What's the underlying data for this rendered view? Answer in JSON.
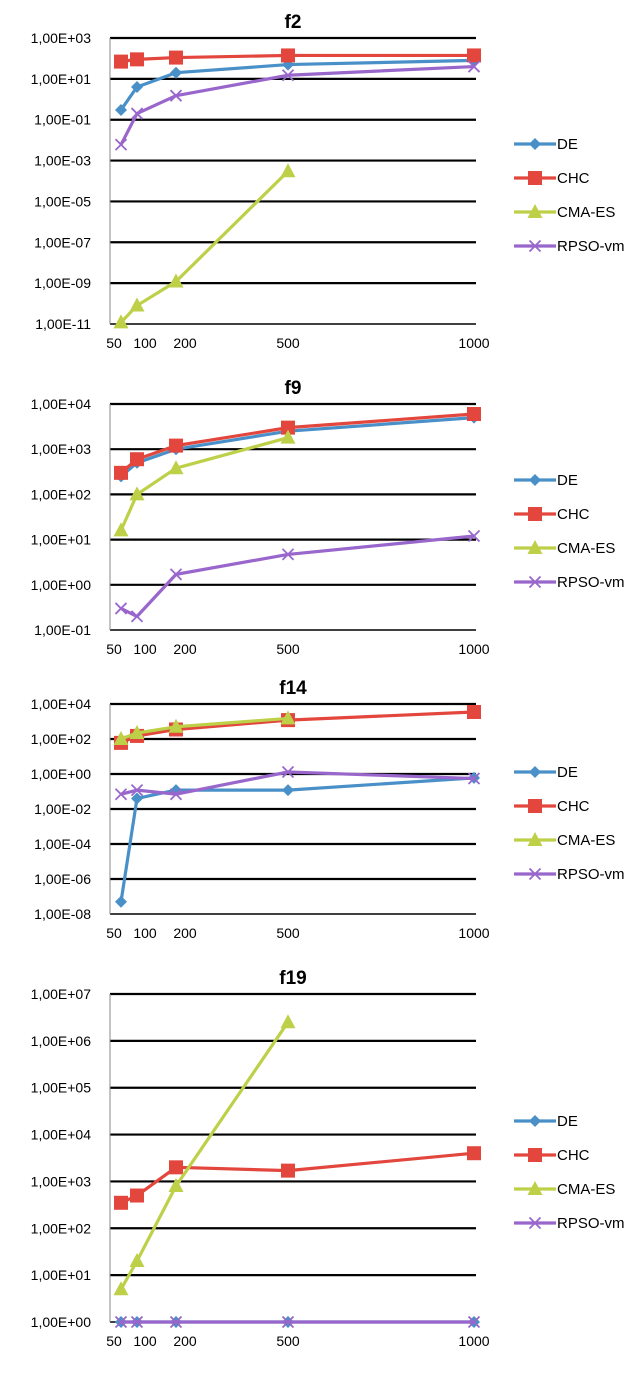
{
  "chart_data": [
    {
      "type": "line",
      "title": "f2",
      "y_scale": "log",
      "ylim": [
        1e-11,
        1000
      ],
      "y_ticks": [
        "1,00E+03",
        "1,00E+01",
        "1,00E-01",
        "1,00E-03",
        "1,00E-05",
        "1,00E-07",
        "1,00E-09",
        "1,00E-11"
      ],
      "x": [
        50,
        100,
        200,
        500,
        1000
      ],
      "x_ticks": [
        "50",
        "100",
        "200",
        "500",
        "1000"
      ],
      "grid": true,
      "legend": "right",
      "series": [
        {
          "name": "DE",
          "color": "#4a90c8",
          "marker": "diamond",
          "x": [
            50,
            100,
            200,
            500,
            1000
          ],
          "values": [
            0.3,
            4,
            20,
            50,
            80
          ]
        },
        {
          "name": "CHC",
          "color": "#e2463c",
          "marker": "square",
          "x": [
            50,
            100,
            200,
            500,
            1000
          ],
          "values": [
            70,
            90,
            110,
            140,
            140
          ]
        },
        {
          "name": "CMA-ES",
          "color": "#bdd048",
          "marker": "triangle",
          "x": [
            50,
            100,
            200,
            500
          ],
          "values": [
            1.2e-11,
            8e-11,
            1.2e-09,
            0.0003
          ]
        },
        {
          "name": "RPSO-vm",
          "color": "#9966cc",
          "marker": "x",
          "x": [
            50,
            100,
            200,
            500,
            1000
          ],
          "values": [
            0.006,
            0.2,
            1.5,
            15,
            40
          ]
        }
      ]
    },
    {
      "type": "line",
      "title": "f9",
      "y_scale": "log",
      "ylim": [
        0.1,
        10000
      ],
      "y_ticks": [
        "1,00E+04",
        "1,00E+03",
        "1,00E+02",
        "1,00E+01",
        "1,00E+00",
        "1,00E-01"
      ],
      "x": [
        50,
        100,
        200,
        500,
        1000
      ],
      "x_ticks": [
        "50",
        "100",
        "200",
        "500",
        "1000"
      ],
      "grid": true,
      "legend": "right",
      "series": [
        {
          "name": "DE",
          "color": "#4a90c8",
          "marker": "diamond",
          "x": [
            50,
            100,
            200,
            500,
            1000
          ],
          "values": [
            250,
            500,
            1000,
            2500,
            5000
          ]
        },
        {
          "name": "CHC",
          "color": "#e2463c",
          "marker": "square",
          "x": [
            50,
            100,
            200,
            500,
            1000
          ],
          "values": [
            300,
            600,
            1200,
            3000,
            6000
          ]
        },
        {
          "name": "CMA-ES",
          "color": "#bdd048",
          "marker": "triangle",
          "x": [
            50,
            100,
            200,
            500
          ],
          "values": [
            16,
            100,
            380,
            1800
          ]
        },
        {
          "name": "RPSO-vm",
          "color": "#9966cc",
          "marker": "x",
          "x": [
            50,
            100,
            200,
            500,
            1000
          ],
          "values": [
            0.3,
            0.2,
            1.7,
            4.7,
            12
          ]
        }
      ]
    },
    {
      "type": "line",
      "title": "f14",
      "y_scale": "log",
      "ylim": [
        1e-08,
        10000
      ],
      "y_ticks": [
        "1,00E+04",
        "1,00E+02",
        "1,00E+00",
        "1,00E-02",
        "1,00E-04",
        "1,00E-06",
        "1,00E-08"
      ],
      "x": [
        50,
        100,
        200,
        500,
        1000
      ],
      "x_ticks": [
        "50",
        "100",
        "200",
        "500",
        "1000"
      ],
      "grid": true,
      "legend": "right",
      "series": [
        {
          "name": "DE",
          "color": "#4a90c8",
          "marker": "diamond",
          "x": [
            50,
            100,
            200,
            500,
            1000
          ],
          "values": [
            5e-08,
            0.04,
            0.12,
            0.12,
            0.6
          ]
        },
        {
          "name": "CHC",
          "color": "#e2463c",
          "marker": "square",
          "x": [
            50,
            100,
            200,
            500,
            1000
          ],
          "values": [
            60,
            150,
            350,
            1200,
            3500
          ]
        },
        {
          "name": "CMA-ES",
          "color": "#bdd048",
          "marker": "triangle",
          "x": [
            50,
            100,
            200,
            500
          ],
          "values": [
            100,
            220,
            500,
            1500
          ]
        },
        {
          "name": "RPSO-vm",
          "color": "#9966cc",
          "marker": "x",
          "x": [
            50,
            100,
            200,
            500,
            1000
          ],
          "values": [
            0.07,
            0.12,
            0.07,
            1.3,
            0.55
          ]
        }
      ]
    },
    {
      "type": "line",
      "title": "f19",
      "y_scale": "log",
      "ylim": [
        1,
        10000000
      ],
      "y_ticks": [
        "1,00E+07",
        "1,00E+06",
        "1,00E+05",
        "1,00E+04",
        "1,00E+03",
        "1,00E+02",
        "1,00E+01",
        "1,00E+00"
      ],
      "x": [
        50,
        100,
        200,
        500,
        1000
      ],
      "x_ticks": [
        "50",
        "100",
        "200",
        "500",
        "1000"
      ],
      "grid": true,
      "legend": "right",
      "series": [
        {
          "name": "DE",
          "color": "#4a90c8",
          "marker": "diamond",
          "x": [
            50,
            100,
            200,
            500,
            1000
          ],
          "values": [
            1,
            1,
            1,
            1,
            1
          ]
        },
        {
          "name": "CHC",
          "color": "#e2463c",
          "marker": "square",
          "x": [
            50,
            100,
            200,
            500,
            1000
          ],
          "values": [
            350,
            500,
            2000,
            1700,
            4000
          ]
        },
        {
          "name": "CMA-ES",
          "color": "#bdd048",
          "marker": "triangle",
          "x": [
            50,
            100,
            200,
            500
          ],
          "values": [
            5,
            20,
            800,
            2500000
          ]
        },
        {
          "name": "RPSO-vm",
          "color": "#9966cc",
          "marker": "x",
          "x": [
            50,
            100,
            200,
            500,
            1000
          ],
          "values": [
            1,
            1,
            1,
            1,
            1
          ]
        }
      ]
    }
  ]
}
